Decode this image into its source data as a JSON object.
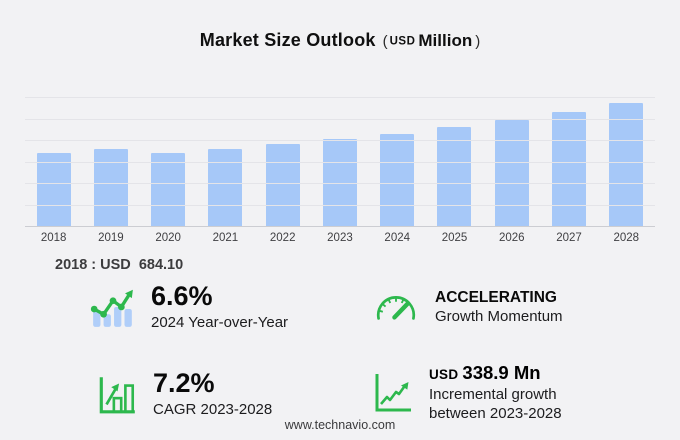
{
  "title": {
    "main": "Market Size Outlook",
    "open": "(",
    "unit_small": "USD",
    "unit_big": "Million",
    "close": ")"
  },
  "chart_data": {
    "type": "bar",
    "title": "Market Size Outlook (USD Million)",
    "categories": [
      "2018",
      "2019",
      "2020",
      "2021",
      "2022",
      "2023",
      "2024",
      "2025",
      "2026",
      "2027",
      "2028"
    ],
    "values": [
      684.1,
      722,
      688,
      722,
      768,
      815.4,
      869.2,
      931,
      996,
      1072,
      1154.3
    ],
    "xlabel": "",
    "ylabel": "",
    "ylim": [
      0,
      1200
    ],
    "gridlines": [
      0,
      200,
      400,
      600,
      800,
      1000,
      1200
    ],
    "grid": true,
    "legend": false,
    "bar_color": "#a6c8f8"
  },
  "annotation_2018": "2018 : USD  684.10",
  "stats": {
    "yoy": {
      "icon": "combo-chart-up-icon",
      "value": "6.6%",
      "label": "2024 Year-over-Year"
    },
    "momentum": {
      "icon": "gauge-icon",
      "value": "ACCELERATING",
      "label": "Growth Momentum"
    },
    "cagr": {
      "icon": "bar-chart-growth-icon",
      "value": "7.2%",
      "label": "CAGR 2023-2028"
    },
    "incremental": {
      "icon": "line-growth-icon",
      "value_prefix": "USD",
      "value": "338.9 Mn",
      "label_line1": "Incremental growth",
      "label_line2": "between 2023-2028"
    }
  },
  "footer": {
    "url": "www.technavio.com"
  },
  "colors": {
    "background": "#f2f2f4",
    "bar": "#a6c8f8",
    "icon_green": "#2db84d",
    "icon_blue": "#b0cef9",
    "gridline": "#e4e4e8"
  }
}
